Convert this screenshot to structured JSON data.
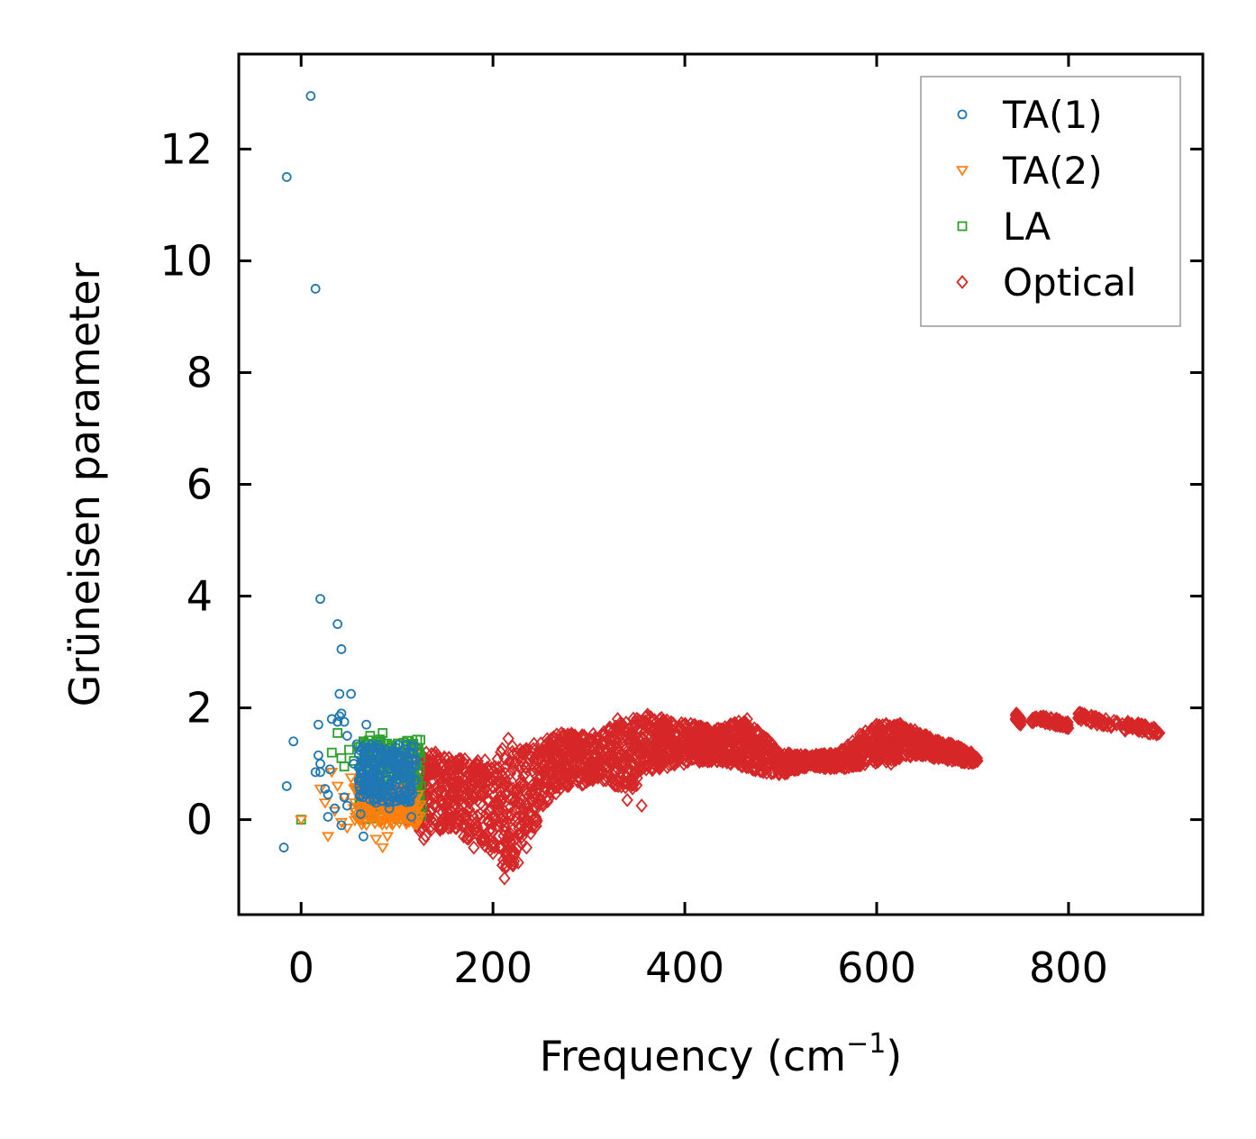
{
  "chart_data": {
    "type": "scatter",
    "title": "",
    "xlabel": "Frequency (cm",
    "xlabel_sup": "−1",
    "xlabel_tail": ")",
    "ylabel": "Grüneisen parameter",
    "xlim": [
      -65,
      940
    ],
    "ylim": [
      -1.7,
      13.7
    ],
    "xticks": [
      0,
      200,
      400,
      600,
      800
    ],
    "yticks": [
      0,
      2,
      4,
      6,
      8,
      10,
      12
    ],
    "grid": false,
    "legend_position": "top-right",
    "series": [
      {
        "name": "TA(1)",
        "marker": "circle",
        "color": "#1f77b4",
        "points": [
          [
            -18,
            -0.5
          ],
          [
            -15,
            11.5
          ],
          [
            -15,
            0.6
          ],
          [
            -8,
            1.4
          ],
          [
            10,
            12.95
          ],
          [
            15,
            9.5
          ],
          [
            15,
            0.85
          ],
          [
            18,
            1.15
          ],
          [
            18,
            1.7
          ],
          [
            20,
            0.85
          ],
          [
            20,
            1.0
          ],
          [
            20,
            3.95
          ],
          [
            25,
            0.55
          ],
          [
            28,
            0.45
          ],
          [
            28,
            0.05
          ],
          [
            30,
            0.9
          ],
          [
            32,
            1.8
          ],
          [
            35,
            0.2
          ],
          [
            38,
            1.75
          ],
          [
            38,
            3.5
          ],
          [
            40,
            2.25
          ],
          [
            40,
            1.85
          ],
          [
            42,
            3.05
          ],
          [
            42,
            1.9
          ],
          [
            42,
            -0.1
          ],
          [
            45,
            1.75
          ],
          [
            45,
            0.4
          ],
          [
            48,
            0.25
          ],
          [
            48,
            1.5
          ],
          [
            52,
            2.25
          ],
          [
            55,
            1.0
          ],
          [
            58,
            1.35
          ],
          [
            60,
            0.7
          ],
          [
            62,
            0.1
          ],
          [
            65,
            -0.3
          ],
          [
            68,
            1.7
          ],
          [
            70,
            0.5
          ],
          [
            72,
            1.2
          ],
          [
            75,
            0.95
          ],
          [
            78,
            0.3
          ],
          [
            80,
            1.1
          ],
          [
            82,
            0.75
          ],
          [
            85,
            0.45
          ],
          [
            88,
            1.25
          ],
          [
            90,
            0.9
          ],
          [
            92,
            0.2
          ],
          [
            95,
            1.05
          ],
          [
            98,
            0.6
          ],
          [
            100,
            0.8
          ],
          [
            105,
            0.35
          ],
          [
            110,
            0.65
          ],
          [
            115,
            0.05
          ]
        ]
      },
      {
        "name": "TA(2)",
        "marker": "triangle-down",
        "color": "#ff7f0e",
        "points": [
          [
            0,
            0.0
          ],
          [
            20,
            0.55
          ],
          [
            25,
            0.3
          ],
          [
            28,
            -0.3
          ],
          [
            32,
            0.85
          ],
          [
            35,
            0.15
          ],
          [
            38,
            0.6
          ],
          [
            42,
            -0.05
          ],
          [
            45,
            0.4
          ],
          [
            48,
            -0.15
          ],
          [
            52,
            0.75
          ],
          [
            55,
            0.2
          ],
          [
            58,
            0.5
          ],
          [
            60,
            0.0
          ],
          [
            62,
            0.35
          ],
          [
            65,
            0.65
          ],
          [
            68,
            -0.1
          ],
          [
            70,
            0.3
          ],
          [
            72,
            0.55
          ],
          [
            75,
            0.05
          ],
          [
            78,
            -0.35
          ],
          [
            80,
            0.25
          ],
          [
            82,
            0.45
          ],
          [
            85,
            -0.5
          ],
          [
            88,
            0.15
          ],
          [
            90,
            -0.3
          ],
          [
            92,
            0.35
          ],
          [
            95,
            0.1
          ],
          [
            98,
            0.5
          ],
          [
            100,
            0.0
          ],
          [
            102,
            0.3
          ],
          [
            105,
            0.15
          ],
          [
            108,
            0.4
          ],
          [
            110,
            0.1
          ],
          [
            112,
            0.25
          ],
          [
            115,
            0.05
          ],
          [
            118,
            0.3
          ],
          [
            120,
            0.15
          ]
        ]
      },
      {
        "name": "LA",
        "marker": "square",
        "color": "#2ca02c",
        "points": [
          [
            0,
            0.0
          ],
          [
            32,
            1.2
          ],
          [
            38,
            1.55
          ],
          [
            42,
            1.1
          ],
          [
            45,
            0.95
          ],
          [
            50,
            1.25
          ],
          [
            55,
            1.05
          ],
          [
            60,
            1.3
          ],
          [
            62,
            0.9
          ],
          [
            65,
            1.4
          ],
          [
            70,
            1.15
          ],
          [
            72,
            1.5
          ],
          [
            75,
            0.95
          ],
          [
            80,
            1.35
          ],
          [
            82,
            1.05
          ],
          [
            85,
            1.55
          ],
          [
            88,
            1.2
          ],
          [
            90,
            1.0
          ],
          [
            95,
            1.3
          ],
          [
            98,
            0.9
          ],
          [
            100,
            1.15
          ],
          [
            105,
            0.8
          ],
          [
            108,
            1.05
          ],
          [
            110,
            0.7
          ],
          [
            112,
            0.95
          ],
          [
            115,
            0.6
          ],
          [
            118,
            0.85
          ],
          [
            120,
            0.5
          ],
          [
            122,
            0.7
          ],
          [
            124,
            0.35
          ],
          [
            125,
            0.6
          ],
          [
            126,
            0.2
          ]
        ]
      },
      {
        "name": "Optical",
        "marker": "diamond",
        "color": "#d62728",
        "points": [
          [
            70,
            0.6
          ],
          [
            100,
            1.1
          ],
          [
            110,
            0.0
          ],
          [
            120,
            1.3
          ],
          [
            128,
            -0.35
          ],
          [
            140,
            1.2
          ],
          [
            160,
            0.05
          ],
          [
            180,
            -0.5
          ],
          [
            200,
            -0.6
          ],
          [
            212,
            -1.05
          ],
          [
            216,
            1.45
          ],
          [
            220,
            -0.8
          ],
          [
            235,
            -0.5
          ],
          [
            250,
            0.6
          ],
          [
            260,
            1.3
          ],
          [
            280,
            0.85
          ],
          [
            295,
            1.5
          ],
          [
            320,
            1.1
          ],
          [
            330,
            1.8
          ],
          [
            340,
            0.35
          ],
          [
            355,
            0.25
          ],
          [
            360,
            1.85
          ],
          [
            380,
            1.05
          ],
          [
            400,
            1.7
          ],
          [
            430,
            1.2
          ],
          [
            465,
            1.8
          ],
          [
            500,
            0.9
          ],
          [
            540,
            1.15
          ],
          [
            575,
            1.4
          ],
          [
            600,
            1.7
          ],
          [
            615,
            1.0
          ],
          [
            640,
            1.4
          ],
          [
            670,
            1.2
          ],
          [
            705,
            1.05
          ],
          [
            745,
            1.8
          ],
          [
            780,
            1.75
          ],
          [
            820,
            1.8
          ],
          [
            850,
            1.7
          ],
          [
            890,
            1.6
          ]
        ],
        "band": {
          "freq": [
            110,
            130,
            150,
            175,
            200,
            215,
            225,
            240,
            255,
            270,
            290,
            310,
            330,
            345,
            360,
            380,
            400,
            430,
            460,
            480,
            500,
            530,
            560,
            580,
            600,
            620,
            640,
            660,
            680,
            700,
            705
          ],
          "lower": [
            0.0,
            -0.3,
            -0.15,
            -0.35,
            -0.6,
            -0.95,
            -0.85,
            -0.3,
            0.25,
            0.55,
            0.6,
            0.75,
            0.55,
            0.5,
            0.85,
            0.9,
            1.0,
            1.05,
            0.95,
            0.85,
            0.8,
            0.95,
            0.9,
            0.95,
            1.0,
            1.05,
            1.15,
            1.1,
            1.05,
            1.0,
            1.05
          ],
          "upper": [
            1.25,
            1.2,
            1.15,
            1.1,
            1.05,
            1.4,
            1.25,
            1.35,
            1.45,
            1.55,
            1.55,
            1.55,
            1.75,
            1.8,
            1.9,
            1.8,
            1.75,
            1.6,
            1.8,
            1.55,
            1.2,
            1.15,
            1.2,
            1.5,
            1.7,
            1.75,
            1.6,
            1.45,
            1.35,
            1.2,
            1.1
          ]
        },
        "isolated": [
          [
            745,
            750,
            1.85,
            1.75
          ],
          [
            760,
            800,
            1.82,
            1.7
          ],
          [
            810,
            860,
            1.85,
            1.65
          ],
          [
            860,
            895,
            1.72,
            1.55
          ]
        ]
      }
    ]
  }
}
